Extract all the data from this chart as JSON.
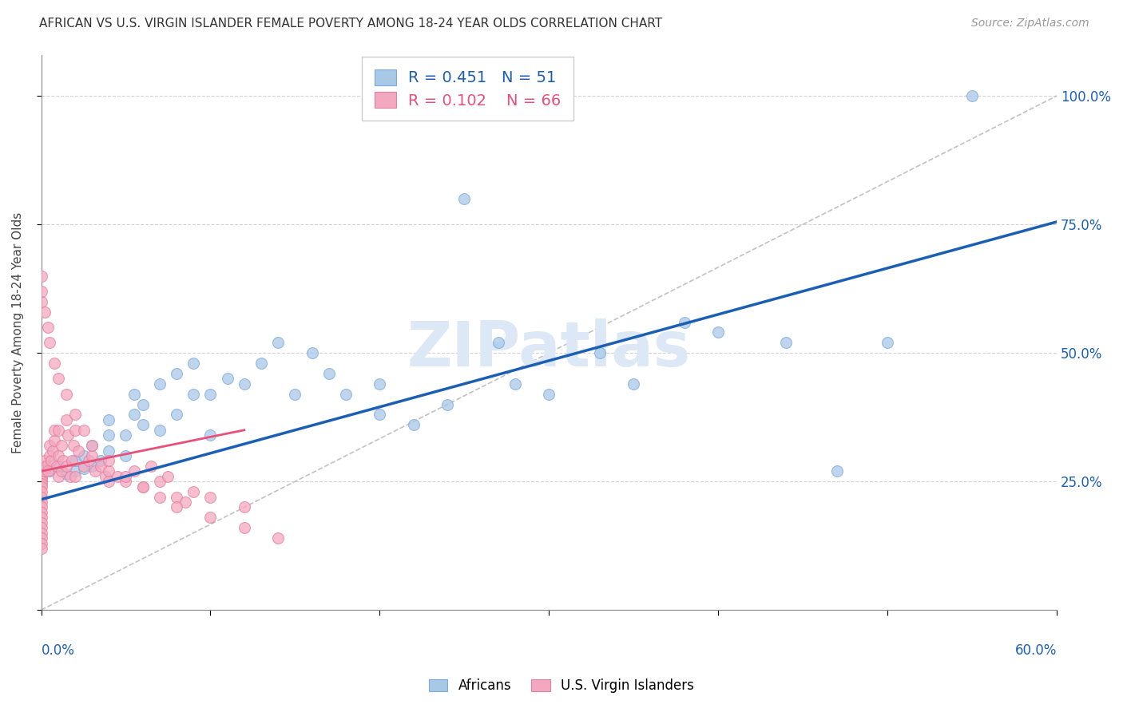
{
  "title": "AFRICAN VS U.S. VIRGIN ISLANDER FEMALE POVERTY AMONG 18-24 YEAR OLDS CORRELATION CHART",
  "source": "Source: ZipAtlas.com",
  "ylabel": "Female Poverty Among 18-24 Year Olds",
  "xlim": [
    0,
    0.6
  ],
  "ylim": [
    0,
    1.08
  ],
  "yticks": [
    0.0,
    0.25,
    0.5,
    0.75,
    1.0
  ],
  "ytick_labels": [
    "",
    "25.0%",
    "50.0%",
    "75.0%",
    "100.0%"
  ],
  "xtick_positions": [
    0.0,
    0.1,
    0.2,
    0.3,
    0.4,
    0.5,
    0.6
  ],
  "africans_R": "0.451",
  "africans_N": "51",
  "vi_R": "0.102",
  "vi_N": "66",
  "africans_color": "#a8c8e8",
  "vi_color": "#f4a8c0",
  "africans_line_color": "#1a5fb4",
  "vi_line_color": "#e8507a",
  "background_color": "#ffffff",
  "grid_color": "#c8c8c8",
  "africans_x": [
    0.005,
    0.01,
    0.015,
    0.02,
    0.02,
    0.025,
    0.025,
    0.03,
    0.03,
    0.035,
    0.04,
    0.04,
    0.04,
    0.05,
    0.05,
    0.055,
    0.055,
    0.06,
    0.06,
    0.07,
    0.07,
    0.08,
    0.08,
    0.09,
    0.09,
    0.1,
    0.1,
    0.11,
    0.12,
    0.13,
    0.14,
    0.15,
    0.16,
    0.17,
    0.18,
    0.2,
    0.2,
    0.22,
    0.24,
    0.25,
    0.27,
    0.28,
    0.3,
    0.33,
    0.35,
    0.38,
    0.4,
    0.44,
    0.47,
    0.5,
    0.55
  ],
  "africans_y": [
    0.27,
    0.28,
    0.265,
    0.27,
    0.29,
    0.275,
    0.3,
    0.28,
    0.32,
    0.29,
    0.31,
    0.34,
    0.37,
    0.3,
    0.34,
    0.38,
    0.42,
    0.36,
    0.4,
    0.35,
    0.44,
    0.38,
    0.46,
    0.42,
    0.48,
    0.34,
    0.42,
    0.45,
    0.44,
    0.48,
    0.52,
    0.42,
    0.5,
    0.46,
    0.42,
    0.38,
    0.44,
    0.36,
    0.4,
    0.8,
    0.52,
    0.44,
    0.42,
    0.5,
    0.44,
    0.56,
    0.54,
    0.52,
    0.27,
    0.52,
    1.0
  ],
  "vi_x": [
    0.0,
    0.0,
    0.0,
    0.0,
    0.0,
    0.0,
    0.0,
    0.0,
    0.0,
    0.0,
    0.0,
    0.0,
    0.0,
    0.0,
    0.0,
    0.0,
    0.0,
    0.0,
    0.0,
    0.0,
    0.002,
    0.002,
    0.003,
    0.004,
    0.005,
    0.005,
    0.006,
    0.007,
    0.008,
    0.008,
    0.009,
    0.01,
    0.01,
    0.01,
    0.012,
    0.012,
    0.013,
    0.015,
    0.015,
    0.016,
    0.017,
    0.018,
    0.019,
    0.02,
    0.02,
    0.022,
    0.025,
    0.028,
    0.03,
    0.032,
    0.035,
    0.038,
    0.04,
    0.04,
    0.045,
    0.05,
    0.055,
    0.06,
    0.065,
    0.07,
    0.075,
    0.08,
    0.085,
    0.09,
    0.1,
    0.12
  ],
  "vi_y": [
    0.28,
    0.27,
    0.265,
    0.26,
    0.255,
    0.25,
    0.245,
    0.24,
    0.23,
    0.22,
    0.21,
    0.2,
    0.19,
    0.18,
    0.17,
    0.16,
    0.15,
    0.14,
    0.13,
    0.12,
    0.29,
    0.27,
    0.28,
    0.27,
    0.3,
    0.32,
    0.29,
    0.31,
    0.33,
    0.35,
    0.28,
    0.35,
    0.3,
    0.26,
    0.27,
    0.32,
    0.29,
    0.37,
    0.28,
    0.34,
    0.26,
    0.29,
    0.32,
    0.35,
    0.26,
    0.31,
    0.28,
    0.29,
    0.3,
    0.27,
    0.28,
    0.26,
    0.25,
    0.27,
    0.26,
    0.25,
    0.27,
    0.24,
    0.28,
    0.25,
    0.26,
    0.22,
    0.21,
    0.23,
    0.22,
    0.2
  ],
  "vi_extra_x": [
    0.0,
    0.0,
    0.0,
    0.002,
    0.004,
    0.005,
    0.008,
    0.01,
    0.015,
    0.02,
    0.025,
    0.03,
    0.04,
    0.05,
    0.06,
    0.07,
    0.08,
    0.1,
    0.12,
    0.14
  ],
  "vi_extra_y": [
    0.6,
    0.62,
    0.65,
    0.58,
    0.55,
    0.52,
    0.48,
    0.45,
    0.42,
    0.38,
    0.35,
    0.32,
    0.29,
    0.26,
    0.24,
    0.22,
    0.2,
    0.18,
    0.16,
    0.14
  ]
}
